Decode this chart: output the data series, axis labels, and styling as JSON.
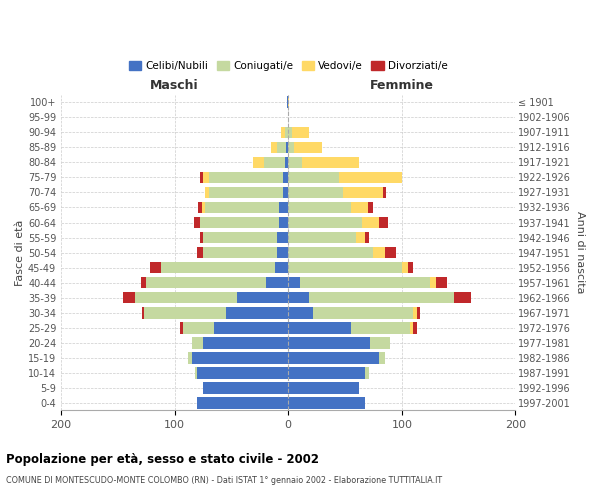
{
  "age_groups": [
    "0-4",
    "5-9",
    "10-14",
    "15-19",
    "20-24",
    "25-29",
    "30-34",
    "35-39",
    "40-44",
    "45-49",
    "50-54",
    "55-59",
    "60-64",
    "65-69",
    "70-74",
    "75-79",
    "80-84",
    "85-89",
    "90-94",
    "95-99",
    "100+"
  ],
  "birth_years": [
    "1997-2001",
    "1992-1996",
    "1987-1991",
    "1982-1986",
    "1977-1981",
    "1972-1976",
    "1967-1971",
    "1962-1966",
    "1957-1961",
    "1952-1956",
    "1947-1951",
    "1942-1946",
    "1937-1941",
    "1932-1936",
    "1927-1931",
    "1922-1926",
    "1917-1921",
    "1912-1916",
    "1907-1911",
    "1902-1906",
    "≤ 1901"
  ],
  "maschi_celibi": [
    80,
    75,
    80,
    85,
    75,
    65,
    55,
    45,
    20,
    12,
    10,
    10,
    8,
    8,
    5,
    5,
    3,
    2,
    0,
    0,
    1
  ],
  "maschi_coniugati": [
    0,
    0,
    2,
    3,
    10,
    28,
    72,
    90,
    105,
    100,
    65,
    65,
    70,
    65,
    65,
    65,
    18,
    8,
    3,
    0,
    0
  ],
  "maschi_vedovi": [
    0,
    0,
    0,
    0,
    0,
    0,
    0,
    0,
    0,
    0,
    0,
    0,
    0,
    3,
    3,
    5,
    10,
    5,
    3,
    0,
    0
  ],
  "maschi_divorziati": [
    0,
    0,
    0,
    0,
    0,
    2,
    2,
    10,
    5,
    10,
    5,
    3,
    5,
    3,
    0,
    3,
    0,
    0,
    0,
    0,
    0
  ],
  "femmine_nubili": [
    68,
    62,
    68,
    80,
    72,
    55,
    22,
    18,
    10,
    0,
    0,
    0,
    0,
    0,
    0,
    0,
    0,
    0,
    0,
    0,
    0
  ],
  "femmine_coniugate": [
    0,
    0,
    3,
    5,
    18,
    52,
    88,
    128,
    115,
    100,
    75,
    60,
    65,
    55,
    48,
    45,
    12,
    5,
    3,
    0,
    0
  ],
  "femmine_vedove": [
    0,
    0,
    0,
    0,
    0,
    3,
    3,
    0,
    5,
    5,
    10,
    8,
    15,
    15,
    35,
    55,
    50,
    25,
    15,
    0,
    1
  ],
  "femmine_divorziate": [
    0,
    0,
    0,
    0,
    0,
    3,
    3,
    15,
    10,
    5,
    10,
    3,
    8,
    5,
    3,
    0,
    0,
    0,
    0,
    0,
    0
  ],
  "colors": {
    "celibi": "#4472C4",
    "coniugati": "#C5D9A0",
    "vedovi": "#FFD966",
    "divorziati": "#C0282A"
  },
  "xlim": 200,
  "title": "Popolazione per età, sesso e stato civile - 2002",
  "subtitle": "COMUNE DI MONTESCUDO-MONTE COLOMBO (RN) - Dati ISTAT 1° gennaio 2002 - Elaborazione TUTTITALIA.IT",
  "legend_labels": [
    "Celibi/Nubili",
    "Coniugati/e",
    "Vedovi/e",
    "Divorziati/e"
  ],
  "ylabel_left": "Fasce di età",
  "ylabel_right": "Anni di nascita",
  "header_maschi": "Maschi",
  "header_femmine": "Femmine",
  "bg_color": "#ffffff",
  "grid_color": "#cccccc"
}
